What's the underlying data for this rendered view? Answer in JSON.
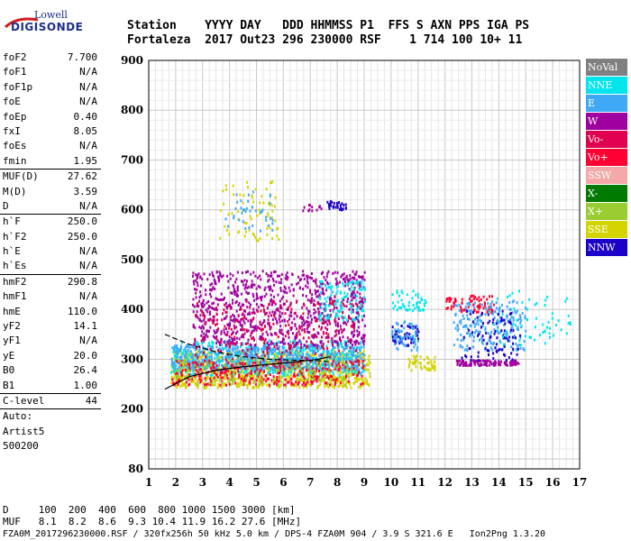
{
  "logo": {
    "top": "Lowell",
    "main": "DIGISONDE"
  },
  "header": {
    "line1": "Station    YYYY DAY   DDD HHMMSS P1  FFS S AXN PPS IGA PS",
    "line2": "Fortaleza  2017 Out23 296 230000 RSF    1 714 100 10+ 11"
  },
  "params": [
    {
      "k": "foF2",
      "v": "7.700"
    },
    {
      "k": "foF1",
      "v": "N/A"
    },
    {
      "k": "foF1p",
      "v": "N/A"
    },
    {
      "k": "foE",
      "v": "N/A"
    },
    {
      "k": "foEp",
      "v": "0.40"
    },
    {
      "k": "fxI",
      "v": "8.05"
    },
    {
      "k": "foEs",
      "v": "N/A"
    },
    {
      "k": "fmin",
      "v": "1.95"
    },
    {
      "sep": true
    },
    {
      "k": "MUF(D)",
      "v": "27.62"
    },
    {
      "k": "M(D)",
      "v": "3.59"
    },
    {
      "k": "D",
      "v": "N/A"
    },
    {
      "sep": true
    },
    {
      "k": "h`F",
      "v": "250.0"
    },
    {
      "k": "h`F2",
      "v": "250.0"
    },
    {
      "k": "h`E",
      "v": "N/A"
    },
    {
      "k": "h`Es",
      "v": "N/A"
    },
    {
      "sep": true
    },
    {
      "k": "hmF2",
      "v": "290.8"
    },
    {
      "k": "hmF1",
      "v": "N/A"
    },
    {
      "k": "hmE",
      "v": "110.0"
    },
    {
      "k": "yF2",
      "v": "14.1"
    },
    {
      "k": "yF1",
      "v": "N/A"
    },
    {
      "k": "yE",
      "v": "20.0"
    },
    {
      "k": "B0",
      "v": "26.4"
    },
    {
      "k": "B1",
      "v": "1.00"
    },
    {
      "sep": true
    },
    {
      "k": "C-level",
      "v": "44"
    },
    {
      "sep": true
    },
    {
      "k": "Auto:",
      "v": ""
    },
    {
      "k": "Artist5",
      "v": ""
    },
    {
      "k": "500200",
      "v": ""
    }
  ],
  "bottom": {
    "line1": "D     100  200  400  600  800 1000 1500 3000 [km]",
    "line2": "MUF   8.1  8.2  8.6  9.3 10.4 11.9 16.2 27.6 [MHz]",
    "line3": "FZA0M_2017296230000.RSF / 320fx256h 50 kHz 5.0 km / DPS-4 FZA0M 904 / 3.9 S 321.6 E   Ion2Png 1.3.20"
  },
  "legend": [
    {
      "label": "NoVal",
      "color": "#808080"
    },
    {
      "label": "NNE",
      "color": "#00e5ee"
    },
    {
      "label": "E",
      "color": "#3fa9f5"
    },
    {
      "label": "W",
      "color": "#a0009f"
    },
    {
      "label": "Vo-",
      "color": "#e0004f"
    },
    {
      "label": "Vo+",
      "color": "#ff0033"
    },
    {
      "label": "SSW",
      "color": "#f4a8a8"
    },
    {
      "label": "X-",
      "color": "#007a00"
    },
    {
      "label": "X+",
      "color": "#9acd32"
    },
    {
      "label": "SSE",
      "color": "#d4d400"
    },
    {
      "label": "NNW",
      "color": "#1a00c8"
    }
  ],
  "chart_data": {
    "type": "scatter",
    "title": "",
    "xlabel": "",
    "ylabel": "",
    "xlim": [
      1,
      17
    ],
    "ylim": [
      80,
      900
    ],
    "xticks": [
      1,
      2,
      3,
      4,
      5,
      6,
      7,
      8,
      9,
      10,
      11,
      12,
      13,
      14,
      15,
      16,
      17
    ],
    "yticks": [
      80,
      200,
      300,
      400,
      500,
      600,
      700,
      800,
      900
    ],
    "grid": true,
    "legend_position": "right",
    "traces": [
      {
        "name": "profile-upper",
        "x": [
          1.6,
          2.5,
          3.5,
          4.5,
          5.5,
          6.5,
          7.3,
          7.7
        ],
        "y": [
          350,
          330,
          315,
          305,
          300,
          298,
          297,
          295
        ]
      },
      {
        "name": "profile-lower",
        "x": [
          1.6,
          2.5,
          3.5,
          4.5,
          5.5,
          6.5,
          7.3,
          7.7
        ],
        "y": [
          240,
          265,
          278,
          285,
          290,
          295,
          300,
          305
        ]
      }
    ],
    "clusters": [
      {
        "series": "SSE",
        "x": [
          1.8,
          9.2
        ],
        "y": [
          245,
          320
        ],
        "n": 900
      },
      {
        "series": "NNE",
        "x": [
          1.8,
          9.0
        ],
        "y": [
          270,
          340
        ],
        "n": 500
      },
      {
        "series": "E",
        "x": [
          1.8,
          9.0
        ],
        "y": [
          280,
          330
        ],
        "n": 600
      },
      {
        "series": "W",
        "x": [
          2.6,
          9.0
        ],
        "y": [
          330,
          480
        ],
        "n": 900
      },
      {
        "series": "Vo+",
        "x": [
          1.8,
          9.0
        ],
        "y": [
          250,
          300
        ],
        "n": 350
      },
      {
        "series": "Vo-",
        "x": [
          2.6,
          8.8
        ],
        "y": [
          300,
          420
        ],
        "n": 250
      },
      {
        "series": "X+",
        "x": [
          2.0,
          8.5
        ],
        "y": [
          250,
          300
        ],
        "n": 150
      },
      {
        "series": "SSE",
        "x": [
          3.5,
          5.8
        ],
        "y": [
          540,
          660
        ],
        "n": 70
      },
      {
        "series": "E",
        "x": [
          3.8,
          5.6
        ],
        "y": [
          560,
          640
        ],
        "n": 40
      },
      {
        "series": "NNW",
        "x": [
          7.6,
          8.3
        ],
        "y": [
          600,
          620
        ],
        "n": 30
      },
      {
        "series": "W",
        "x": [
          6.6,
          7.4
        ],
        "y": [
          600,
          612
        ],
        "n": 12
      },
      {
        "series": "NNE",
        "x": [
          7.3,
          9.0
        ],
        "y": [
          380,
          460
        ],
        "n": 120
      },
      {
        "series": "NNE",
        "x": [
          10.0,
          11.3
        ],
        "y": [
          400,
          440
        ],
        "n": 50
      },
      {
        "series": "NNW",
        "x": [
          10.0,
          11.0
        ],
        "y": [
          330,
          370
        ],
        "n": 50
      },
      {
        "series": "E",
        "x": [
          10.0,
          11.0
        ],
        "y": [
          320,
          380
        ],
        "n": 60
      },
      {
        "series": "SSE",
        "x": [
          10.6,
          11.6
        ],
        "y": [
          280,
          310
        ],
        "n": 50
      },
      {
        "series": "Vo+",
        "x": [
          12.0,
          13.8
        ],
        "y": [
          395,
          430
        ],
        "n": 70
      },
      {
        "series": "E",
        "x": [
          12.3,
          15.0
        ],
        "y": [
          320,
          420
        ],
        "n": 200
      },
      {
        "series": "W",
        "x": [
          12.4,
          14.8
        ],
        "y": [
          290,
          300
        ],
        "n": 120
      },
      {
        "series": "NNW",
        "x": [
          12.5,
          14.8
        ],
        "y": [
          300,
          400
        ],
        "n": 90
      },
      {
        "series": "NNE",
        "x": [
          13.5,
          16.7
        ],
        "y": [
          330,
          440
        ],
        "n": 60
      }
    ]
  }
}
